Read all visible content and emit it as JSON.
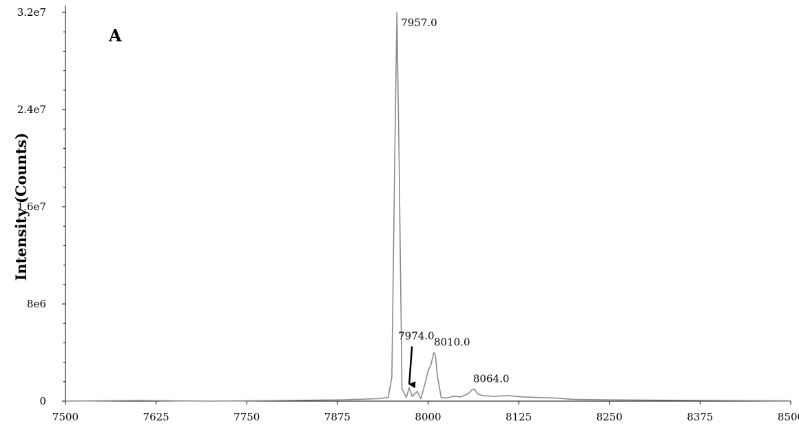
{
  "chart_data": {
    "type": "line",
    "panel_label": "A",
    "title": "",
    "xlabel": "",
    "ylabel": "Intensity (Counts)",
    "xlim": [
      7500,
      8500
    ],
    "ylim": [
      0,
      32000000
    ],
    "x_ticks": [
      7500,
      7625,
      7750,
      7875,
      8000,
      8125,
      8250,
      8375,
      8500
    ],
    "x_tick_labels": [
      "7500",
      "7625",
      "7750",
      "7875",
      "8000",
      "8125",
      "8250",
      "8375",
      "8500"
    ],
    "y_ticks": [
      0,
      8000000,
      16000000,
      24000000,
      32000000
    ],
    "y_tick_labels": [
      "0",
      "8e6",
      "1.6e7",
      "2.4e7",
      "3.2e7"
    ],
    "grid": false,
    "line_color": "#8a8a8a",
    "series": [
      {
        "x": [
          7500,
          7600,
          7700,
          7800,
          7880,
          7930,
          7945,
          7950,
          7954,
          7957,
          7960,
          7964,
          7970,
          7974,
          7978,
          7985,
          7990,
          7996,
          8000,
          8004,
          8008,
          8010,
          8013,
          8018,
          8025,
          8035,
          8045,
          8055,
          8060,
          8064,
          8068,
          8075,
          8090,
          8110,
          8130,
          8150,
          8175,
          8200,
          8250,
          8300,
          8375,
          8450,
          8500
        ],
        "y": [
          0,
          50000,
          0,
          50000,
          100000,
          200000,
          300000,
          2000000,
          20000000,
          32000000,
          20000000,
          1000000,
          300000,
          1100000,
          400000,
          800000,
          200000,
          1500000,
          2500000,
          3000000,
          4000000,
          3800000,
          2000000,
          300000,
          250000,
          400000,
          350000,
          600000,
          900000,
          1000000,
          600000,
          450000,
          400000,
          450000,
          350000,
          300000,
          250000,
          150000,
          100000,
          80000,
          60000,
          40000,
          20000
        ]
      }
    ],
    "annotations": [
      {
        "text": "7957.0",
        "x": 7957,
        "y": 32000000
      },
      {
        "text": "7974.0",
        "x": 7974,
        "y": 1100000,
        "arrow": true
      },
      {
        "text": "8010.0",
        "x": 8010,
        "y": 4000000
      },
      {
        "text": "8064.0",
        "x": 8064,
        "y": 1000000
      }
    ]
  }
}
